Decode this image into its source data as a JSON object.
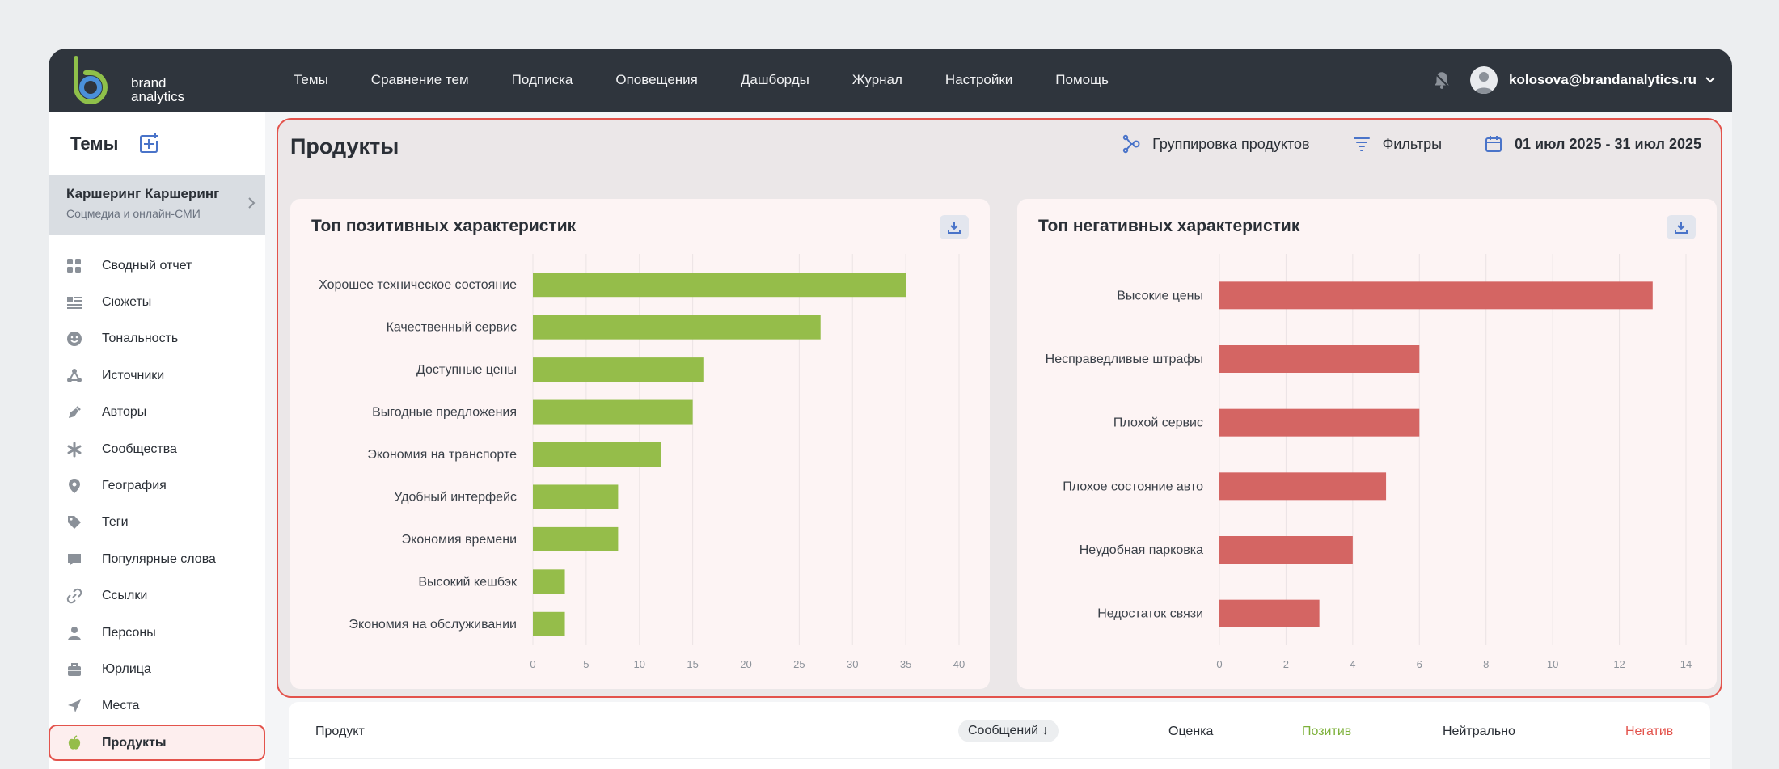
{
  "topbar": {
    "logo_text_1": "brand",
    "logo_text_2": "analytics",
    "nav": [
      "Темы",
      "Сравнение тем",
      "Подписка",
      "Оповещения",
      "Дашборды",
      "Журнал",
      "Настройки",
      "Помощь"
    ],
    "user_email": "kolosova@brandanalytics.ru"
  },
  "sidebar": {
    "title": "Темы",
    "theme_name": "Каршеринг Каршеринг",
    "theme_sub": "Соцмедиа и онлайн-СМИ",
    "items": [
      {
        "label": "Сводный отчет",
        "icon": "grid-icon"
      },
      {
        "label": "Сюжеты",
        "icon": "list-icon"
      },
      {
        "label": "Тональность",
        "icon": "smile-icon"
      },
      {
        "label": "Источники",
        "icon": "network-icon"
      },
      {
        "label": "Авторы",
        "icon": "pen-icon"
      },
      {
        "label": "Сообщества",
        "icon": "asterisk-icon"
      },
      {
        "label": "География",
        "icon": "map-pin-icon"
      },
      {
        "label": "Теги",
        "icon": "tag-icon"
      },
      {
        "label": "Популярные слова",
        "icon": "chat-icon"
      },
      {
        "label": "Ссылки",
        "icon": "link-icon"
      },
      {
        "label": "Персоны",
        "icon": "person-icon"
      },
      {
        "label": "Юрлица",
        "icon": "briefcase-icon"
      },
      {
        "label": "Места",
        "icon": "navigation-icon"
      },
      {
        "label": "Продукты",
        "icon": "apple-icon",
        "active": true
      }
    ]
  },
  "main": {
    "title": "Продукты",
    "toolbar": {
      "grouping": "Группировка продуктов",
      "filters": "Фильтры",
      "date_range": "01 июл 2025 - 31 июл 2025"
    }
  },
  "colors": {
    "positive": "#95bd4a",
    "negative": "#d46563",
    "accent": "#e3534c"
  },
  "chart_data": [
    {
      "type": "bar",
      "orientation": "horizontal",
      "title": "Топ позитивных характеристик",
      "categories": [
        "Хорошее техническое состояние",
        "Качественный сервис",
        "Доступные цены",
        "Выгодные предложения",
        "Экономия на транспорте",
        "Удобный интерфейс",
        "Экономия времени",
        "Высокий кешбэк",
        "Экономия на обслуживании"
      ],
      "values": [
        35,
        27,
        16,
        15,
        12,
        8,
        8,
        3,
        3
      ],
      "xlim": [
        0,
        40
      ],
      "xticks": [
        0,
        5,
        10,
        15,
        20,
        25,
        30,
        35,
        40
      ],
      "grid": true
    },
    {
      "type": "bar",
      "orientation": "horizontal",
      "title": "Топ негативных характеристик",
      "categories": [
        "Высокие цены",
        "Несправедливые штрафы",
        "Плохой сервис",
        "Плохое состояние авто",
        "Неудобная парковка",
        "Недостаток связи"
      ],
      "values": [
        13,
        6,
        6,
        5,
        4,
        3
      ],
      "xlim": [
        0,
        14
      ],
      "xticks": [
        0,
        2,
        4,
        6,
        8,
        10,
        12,
        14
      ],
      "grid": true
    }
  ],
  "table": {
    "columns": [
      "Продукт",
      "Сообщений ↓",
      "Оценка",
      "Позитив",
      "Нейтрально",
      "Негатив"
    ]
  }
}
